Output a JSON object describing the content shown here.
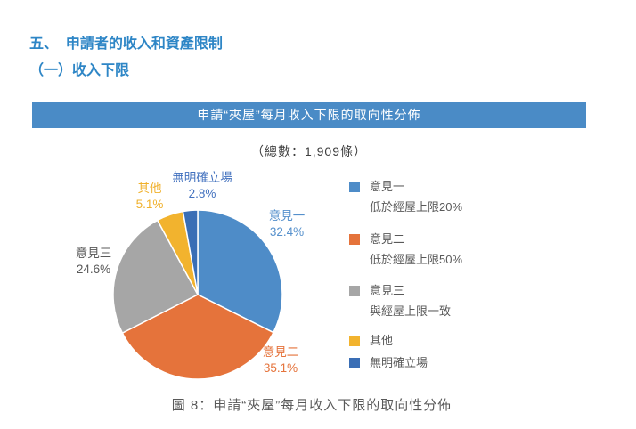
{
  "page": {
    "heading1": "五、  申請者的收入和資產限制",
    "heading2": "（一）收入下限",
    "total_label": "（總數：1,909條）",
    "caption": "圖 8：申請“夾屋”每月收入下限的取向性分佈"
  },
  "colors": {
    "heading_blue": "#2E86C6",
    "banner_background": "#4A8BC6",
    "banner_text": "#FFFFFF",
    "body_text_gray": "#595959"
  },
  "chart_data": {
    "type": "pie",
    "title": "申請“夾屋”每月收入下限的取向性分佈",
    "total_note": "（總數：1,909條）",
    "total_count": 1909,
    "start_angle_deg": 0,
    "direction": "clockwise",
    "legend_position": "right",
    "slices": [
      {
        "label": "意見一",
        "value": 32.4,
        "pct_label": "32.4%",
        "color": "#4E8CC8",
        "label_color": "#5590CC",
        "legend_desc": "低於經屋上限20%"
      },
      {
        "label": "意見二",
        "value": 35.1,
        "pct_label": "35.1%",
        "color": "#E5733B",
        "label_color": "#E5733B",
        "legend_desc": "低於經屋上限50%"
      },
      {
        "label": "意見三",
        "value": 24.6,
        "pct_label": "24.6%",
        "color": "#A6A6A6",
        "label_color": "#595959",
        "legend_desc": "與經屋上限一致"
      },
      {
        "label": "其他",
        "value": 5.1,
        "pct_label": "5.1%",
        "color": "#F2B32E",
        "label_color": "#F0B12D",
        "legend_desc": ""
      },
      {
        "label": "無明確立場",
        "value": 2.8,
        "pct_label": "2.8%",
        "color": "#3A6EB5",
        "label_color": "#4170BE",
        "legend_desc": ""
      }
    ]
  }
}
